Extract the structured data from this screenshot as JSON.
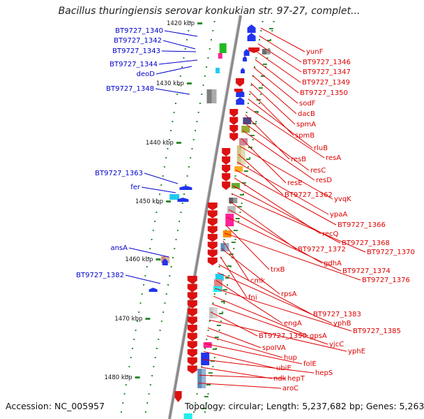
{
  "title": "Bacillus thuringiensis serovar konkukian str. 97-27, complet...",
  "accession": "Accession: NC_005957",
  "topology": "Topology: circular; Length: 5,237,682 bp; Genes: 5,263",
  "colors": {
    "left_label": "#0000cc",
    "right_label": "#dd0000",
    "backbone": "#8a8a8a",
    "tick": "#2e8b2e"
  },
  "scale_labels": [
    "1420 kbp",
    "1430 kbp",
    "1440 kbp",
    "1450 kbp",
    "1460 kbp",
    "1470 kbp",
    "1480 kbp"
  ],
  "left_genes": [
    "BT9727_1340",
    "BT9727_1342",
    "BT9727_1343",
    "BT9727_1344",
    "deoD",
    "BT9727_1348",
    "BT9727_1363",
    "fer",
    "ansA",
    "BT9727_1382"
  ],
  "right_genes": [
    "yunF",
    "BT9727_1346",
    "BT9727_1347",
    "BT9727_1349",
    "BT9727_1350",
    "sodF",
    "dacB",
    "spmA",
    "spmB",
    "rluB",
    "resA",
    "resB",
    "resC",
    "resD",
    "resE",
    "yvqK",
    "BT9727_1362",
    "ypaA",
    "BT9727_1366",
    "recQ",
    "BT9727_1368",
    "BT9727_1370",
    "BT9727_1372",
    "gdhA",
    "BT9727_1374",
    "trxB",
    "BT9727_1376",
    "cmk",
    "rpsA",
    "fni",
    "BT9727_1383",
    "yphB",
    "engA",
    "BT9727_1385",
    "gpsA",
    "yjcC",
    "BT9727_1390",
    "yphE",
    "spoIVA",
    "hup",
    "folE",
    "ubiE",
    "hepS",
    "ndk",
    "hepT",
    "aroC"
  ]
}
